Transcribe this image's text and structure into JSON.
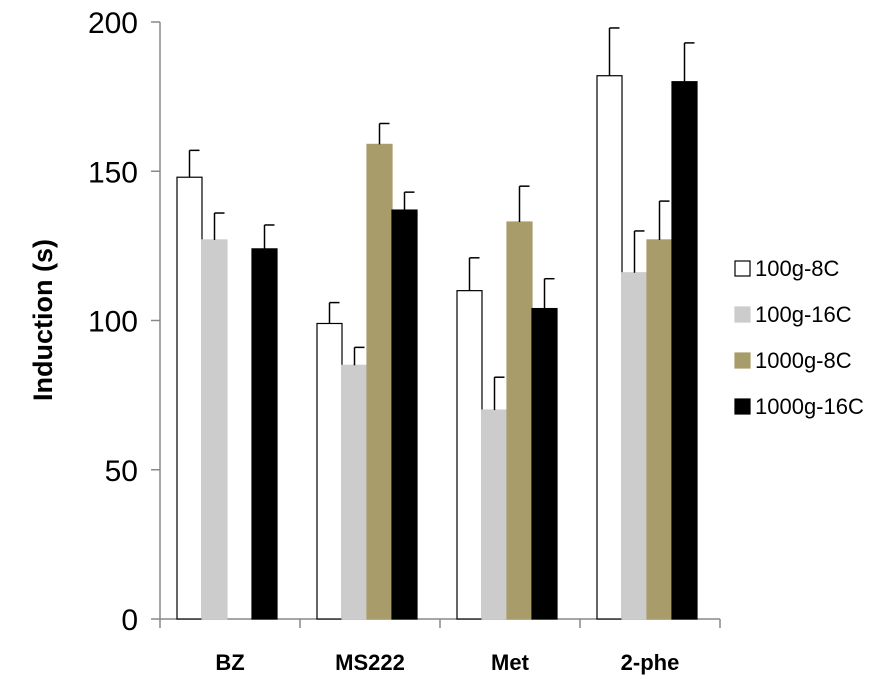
{
  "chart_data": {
    "type": "bar",
    "categories": [
      "BZ",
      "MS222",
      "Met",
      "2-phe"
    ],
    "ylabel": "Induction (s)",
    "xlabel": "",
    "ylim": [
      0,
      200
    ],
    "yticks": [
      "0",
      "50",
      "100",
      "150",
      "200"
    ],
    "grid": false,
    "legend_position": "right",
    "series": [
      {
        "name": "100g-8C",
        "color": "#ffffff",
        "values": [
          148,
          99,
          110,
          182
        ],
        "errors": [
          9,
          7,
          11,
          16
        ]
      },
      {
        "name": "100g-16C",
        "color": "#cccccc",
        "values": [
          127,
          85,
          70,
          116
        ],
        "errors": [
          9,
          6,
          11,
          14
        ]
      },
      {
        "name": "1000g-8C",
        "color": "#a89c6a",
        "values": [
          null,
          159,
          133,
          127
        ],
        "errors": [
          null,
          7,
          12,
          13
        ]
      },
      {
        "name": "1000g-16C",
        "color": "#000000",
        "values": [
          124,
          137,
          104,
          180
        ],
        "errors": [
          8,
          6,
          10,
          13
        ]
      }
    ]
  }
}
